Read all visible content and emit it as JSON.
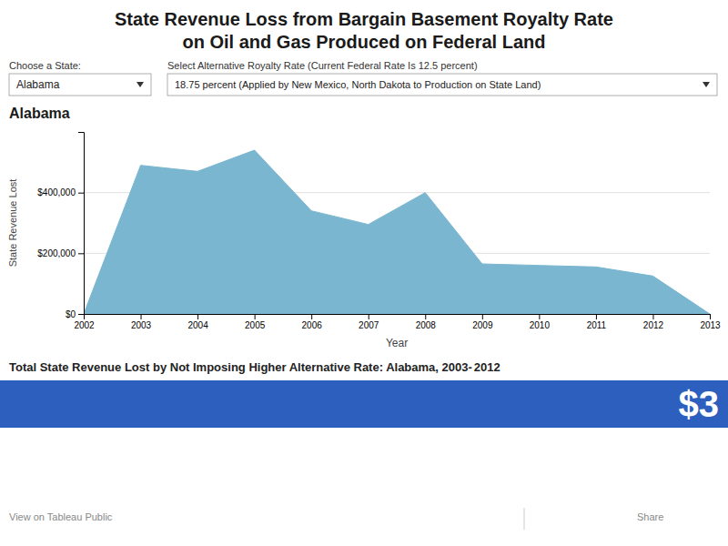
{
  "chart_data": {
    "type": "area",
    "title": "State Revenue Loss from Bargain Basement Royalty Rate\non Oil and Gas Produced on Federal Land",
    "x_label": "Year",
    "y_label": "State Revenue Lost",
    "x": [
      2002,
      2003,
      2004,
      2005,
      2006,
      2007,
      2008,
      2009,
      2010,
      2011,
      2012,
      2013
    ],
    "values": [
      0,
      490000,
      470000,
      540000,
      340000,
      295000,
      400000,
      165000,
      160000,
      155000,
      125000,
      0
    ],
    "color": "#7ab6d0",
    "xlim": [
      2002,
      2013
    ],
    "xticks": [
      2002,
      2003,
      2004,
      2005,
      2006,
      2007,
      2008,
      2009,
      2010,
      2011,
      2012,
      2013
    ],
    "ylim": [
      0,
      600000
    ],
    "yticks": [
      {
        "value": 0,
        "label": "$0"
      },
      {
        "value": 200000,
        "label": "$200,000"
      },
      {
        "value": 400000,
        "label": "$400,000"
      }
    ],
    "grid": true,
    "annotations": [
      "Choose a State:",
      "Alabama",
      "Select Alternative Royalty Rate (Current Federal Rate Is 12.5 percent)",
      "18.75 percent (Applied by New Mexico, North Dakota to Production on State Land)",
      "Alabama",
      "Total State Revenue Lost by Not Imposing Higher Alternative Rate: Alabama, 2003-",
      "2012",
      "$3",
      "View on Tableau Public",
      "Share"
    ]
  }
}
